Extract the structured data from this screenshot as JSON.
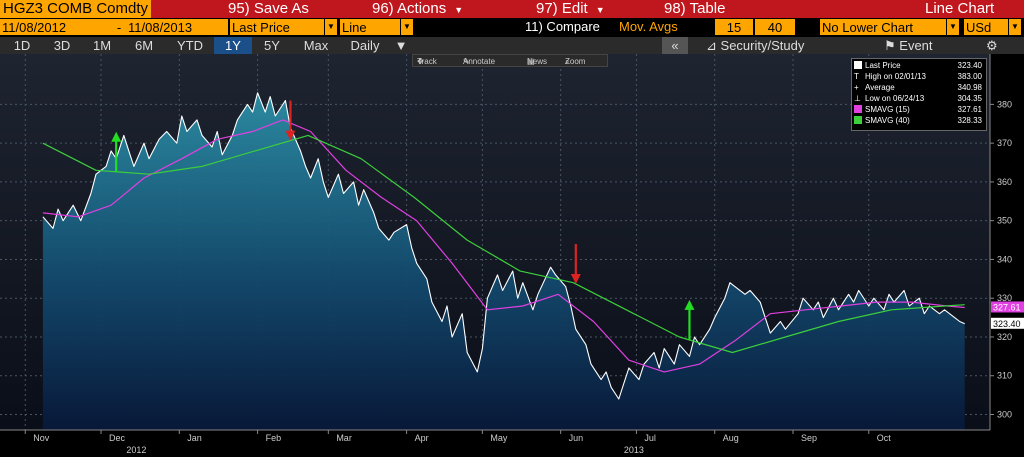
{
  "header": {
    "ticker": "HGZ3 COMB Comdty",
    "menu": [
      {
        "label": "95) Save As"
      },
      {
        "label": "96) Actions"
      },
      {
        "label": "97) Edit"
      },
      {
        "label": "98) Table"
      }
    ],
    "view": "Line Chart"
  },
  "settings": {
    "start_date": "11/08/2012",
    "date_sep": "-",
    "end_date": "11/08/2013",
    "field": "Last Price",
    "chart_style": "Line",
    "compare_label": "11) Compare",
    "study": "Mov. Avgs",
    "ma_short": "15",
    "ma_long": "40",
    "lower_chart": "No Lower Chart",
    "currency": "USd"
  },
  "ranges": {
    "items": [
      "1D",
      "3D",
      "1M",
      "6M",
      "YTD",
      "1Y",
      "5Y",
      "Max"
    ],
    "selected": "1Y",
    "period": "Daily",
    "collapse": "«",
    "security_study": "Security/Study",
    "event": "Event",
    "gear_icon": "gear-icon"
  },
  "toolbar": {
    "track": "Track",
    "annotate": "Annotate",
    "news": "News",
    "zoom": "Zoom"
  },
  "legend": {
    "last": {
      "label": "Last Price",
      "value": "323.40"
    },
    "high": {
      "label": "High on 02/01/13",
      "value": "383.00"
    },
    "average": {
      "label": "Average",
      "value": "340.98"
    },
    "low": {
      "label": "Low on 06/24/13",
      "value": "304.35"
    },
    "sma15": {
      "label": "SMAVG (15)",
      "value": "327.61"
    },
    "sma40": {
      "label": "SMAVG (40)",
      "value": "328.33"
    }
  },
  "value_tags": {
    "sma15": "327.61",
    "last": "323.40"
  },
  "colors": {
    "price": "#ffffff",
    "sma15": "#e040e0",
    "sma40": "#3ccf3c",
    "buy_signal": "#22dd22",
    "sell_signal": "#dd2222",
    "header_bg": "#c0161d",
    "field_bg": "#ffa500"
  },
  "chart_data": {
    "type": "line",
    "y_range": [
      296,
      393
    ],
    "y_ticks": [
      300,
      310,
      320,
      330,
      340,
      350,
      360,
      370,
      380
    ],
    "grid": true,
    "y_axis_side": "right",
    "legend_position": "top-right",
    "x_axis_labels": [
      {
        "date": "2012-11-01",
        "label": "Nov"
      },
      {
        "date": "2012-12-01",
        "label": "Dec"
      },
      {
        "date": "2013-01-01",
        "label": "Jan"
      },
      {
        "date": "2013-02-01",
        "label": "Feb"
      },
      {
        "date": "2013-03-01",
        "label": "Mar"
      },
      {
        "date": "2013-04-01",
        "label": "Apr"
      },
      {
        "date": "2013-05-01",
        "label": "May"
      },
      {
        "date": "2013-06-01",
        "label": "Jun"
      },
      {
        "date": "2013-07-01",
        "label": "Jul"
      },
      {
        "date": "2013-08-01",
        "label": "Aug"
      },
      {
        "date": "2013-09-01",
        "label": "Sep"
      },
      {
        "date": "2013-10-01",
        "label": "Oct"
      }
    ],
    "year_labels": [
      {
        "date": "2012-12-15",
        "label": "2012"
      },
      {
        "date": "2013-06-30",
        "label": "2013"
      }
    ],
    "series": [
      {
        "name": "Last Price",
        "style": "area",
        "points": [
          [
            "2012-11-08",
            351
          ],
          [
            "2012-11-12",
            348
          ],
          [
            "2012-11-14",
            353
          ],
          [
            "2012-11-16",
            350
          ],
          [
            "2012-11-20",
            354
          ],
          [
            "2012-11-23",
            350
          ],
          [
            "2012-11-27",
            357
          ],
          [
            "2012-11-29",
            362
          ],
          [
            "2012-12-03",
            364
          ],
          [
            "2012-12-05",
            368
          ],
          [
            "2012-12-07",
            366
          ],
          [
            "2012-12-10",
            372
          ],
          [
            "2012-12-12",
            368
          ],
          [
            "2012-12-14",
            364
          ],
          [
            "2012-12-18",
            370
          ],
          [
            "2012-12-20",
            366
          ],
          [
            "2012-12-24",
            371
          ],
          [
            "2012-12-27",
            373
          ],
          [
            "2012-12-31",
            370
          ],
          [
            "2013-01-02",
            377
          ],
          [
            "2013-01-04",
            373
          ],
          [
            "2013-01-08",
            376
          ],
          [
            "2013-01-10",
            372
          ],
          [
            "2013-01-14",
            369
          ],
          [
            "2013-01-16",
            373
          ],
          [
            "2013-01-18",
            367
          ],
          [
            "2013-01-22",
            372
          ],
          [
            "2013-01-24",
            376
          ],
          [
            "2013-01-28",
            380
          ],
          [
            "2013-01-30",
            378
          ],
          [
            "2013-02-01",
            383
          ],
          [
            "2013-02-04",
            378
          ],
          [
            "2013-02-06",
            382
          ],
          [
            "2013-02-08",
            377
          ],
          [
            "2013-02-12",
            381
          ],
          [
            "2013-02-14",
            374
          ],
          [
            "2013-02-18",
            368
          ],
          [
            "2013-02-20",
            364
          ],
          [
            "2013-02-22",
            361
          ],
          [
            "2013-02-25",
            366
          ],
          [
            "2013-02-27",
            360
          ],
          [
            "2013-03-01",
            356
          ],
          [
            "2013-03-05",
            362
          ],
          [
            "2013-03-07",
            357
          ],
          [
            "2013-03-11",
            360
          ],
          [
            "2013-03-13",
            354
          ],
          [
            "2013-03-15",
            358
          ],
          [
            "2013-03-19",
            352
          ],
          [
            "2013-03-21",
            348
          ],
          [
            "2013-03-25",
            345
          ],
          [
            "2013-03-27",
            347
          ],
          [
            "2013-04-01",
            349
          ],
          [
            "2013-04-03",
            343
          ],
          [
            "2013-04-05",
            339
          ],
          [
            "2013-04-09",
            335
          ],
          [
            "2013-04-11",
            329
          ],
          [
            "2013-04-15",
            324
          ],
          [
            "2013-04-17",
            328
          ],
          [
            "2013-04-19",
            320
          ],
          [
            "2013-04-23",
            326
          ],
          [
            "2013-04-25",
            316
          ],
          [
            "2013-04-29",
            311
          ],
          [
            "2013-05-01",
            317
          ],
          [
            "2013-05-03",
            330
          ],
          [
            "2013-05-07",
            336
          ],
          [
            "2013-05-09",
            332
          ],
          [
            "2013-05-13",
            337
          ],
          [
            "2013-05-15",
            330
          ],
          [
            "2013-05-17",
            334
          ],
          [
            "2013-05-21",
            327
          ],
          [
            "2013-05-23",
            331
          ],
          [
            "2013-05-28",
            338
          ],
          [
            "2013-05-30",
            336
          ],
          [
            "2013-06-03",
            333
          ],
          [
            "2013-06-05",
            328
          ],
          [
            "2013-06-07",
            322
          ],
          [
            "2013-06-11",
            318
          ],
          [
            "2013-06-13",
            313
          ],
          [
            "2013-06-17",
            309
          ],
          [
            "2013-06-19",
            311
          ],
          [
            "2013-06-21",
            307
          ],
          [
            "2013-06-24",
            304
          ],
          [
            "2013-06-26",
            308
          ],
          [
            "2013-06-28",
            312
          ],
          [
            "2013-07-02",
            309
          ],
          [
            "2013-07-04",
            313
          ],
          [
            "2013-07-08",
            316
          ],
          [
            "2013-07-10",
            312
          ],
          [
            "2013-07-12",
            317
          ],
          [
            "2013-07-16",
            313
          ],
          [
            "2013-07-18",
            318
          ],
          [
            "2013-07-22",
            315
          ],
          [
            "2013-07-24",
            320
          ],
          [
            "2013-07-26",
            318
          ],
          [
            "2013-07-30",
            322
          ],
          [
            "2013-08-01",
            325
          ],
          [
            "2013-08-05",
            330
          ],
          [
            "2013-08-07",
            334
          ],
          [
            "2013-08-09",
            333
          ],
          [
            "2013-08-13",
            331
          ],
          [
            "2013-08-15",
            332
          ],
          [
            "2013-08-19",
            329
          ],
          [
            "2013-08-21",
            325
          ],
          [
            "2013-08-23",
            321
          ],
          [
            "2013-08-27",
            324
          ],
          [
            "2013-08-29",
            322
          ],
          [
            "2013-09-03",
            326
          ],
          [
            "2013-09-05",
            330
          ],
          [
            "2013-09-09",
            327
          ],
          [
            "2013-09-11",
            329
          ],
          [
            "2013-09-13",
            325
          ],
          [
            "2013-09-17",
            330
          ],
          [
            "2013-09-19",
            327
          ],
          [
            "2013-09-23",
            331
          ],
          [
            "2013-09-25",
            329
          ],
          [
            "2013-09-27",
            332
          ],
          [
            "2013-10-01",
            328
          ],
          [
            "2013-10-03",
            330
          ],
          [
            "2013-10-07",
            327
          ],
          [
            "2013-10-09",
            331
          ],
          [
            "2013-10-11",
            329
          ],
          [
            "2013-10-15",
            332
          ],
          [
            "2013-10-17",
            328
          ],
          [
            "2013-10-21",
            330
          ],
          [
            "2013-10-23",
            326
          ],
          [
            "2013-10-25",
            328
          ],
          [
            "2013-10-29",
            326
          ],
          [
            "2013-10-31",
            327
          ],
          [
            "2013-11-04",
            325
          ],
          [
            "2013-11-06",
            324
          ],
          [
            "2013-11-08",
            323.4
          ]
        ]
      },
      {
        "name": "SMAVG (15)",
        "points": [
          [
            "2012-11-08",
            352
          ],
          [
            "2012-11-22",
            351
          ],
          [
            "2012-12-05",
            354
          ],
          [
            "2012-12-18",
            361
          ],
          [
            "2013-01-02",
            366
          ],
          [
            "2013-01-16",
            371
          ],
          [
            "2013-01-30",
            373
          ],
          [
            "2013-02-11",
            376
          ],
          [
            "2013-02-22",
            373
          ],
          [
            "2013-03-08",
            363
          ],
          [
            "2013-03-22",
            356
          ],
          [
            "2013-04-05",
            350
          ],
          [
            "2013-04-19",
            339
          ],
          [
            "2013-05-03",
            327
          ],
          [
            "2013-05-17",
            328
          ],
          [
            "2013-05-31",
            331
          ],
          [
            "2013-06-14",
            324
          ],
          [
            "2013-06-28",
            314
          ],
          [
            "2013-07-12",
            311
          ],
          [
            "2013-07-26",
            313
          ],
          [
            "2013-08-09",
            319
          ],
          [
            "2013-08-23",
            326
          ],
          [
            "2013-09-06",
            327
          ],
          [
            "2013-09-20",
            328
          ],
          [
            "2013-10-04",
            329
          ],
          [
            "2013-10-18",
            329
          ],
          [
            "2013-11-01",
            328
          ],
          [
            "2013-11-08",
            327.61
          ]
        ]
      },
      {
        "name": "SMAVG (40)",
        "points": [
          [
            "2012-11-08",
            370
          ],
          [
            "2012-11-29",
            363
          ],
          [
            "2012-12-20",
            362
          ],
          [
            "2013-01-10",
            364
          ],
          [
            "2013-01-31",
            368
          ],
          [
            "2013-02-21",
            372
          ],
          [
            "2013-03-14",
            366
          ],
          [
            "2013-04-04",
            356
          ],
          [
            "2013-04-25",
            345
          ],
          [
            "2013-05-16",
            337
          ],
          [
            "2013-06-06",
            334
          ],
          [
            "2013-06-27",
            327
          ],
          [
            "2013-07-18",
            320
          ],
          [
            "2013-08-08",
            316
          ],
          [
            "2013-08-29",
            320
          ],
          [
            "2013-09-19",
            324
          ],
          [
            "2013-10-10",
            327
          ],
          [
            "2013-10-31",
            328
          ],
          [
            "2013-11-08",
            328.33
          ]
        ]
      }
    ],
    "signals": [
      {
        "date": "2012-12-07",
        "type": "buy"
      },
      {
        "date": "2013-02-14",
        "type": "sell"
      },
      {
        "date": "2013-06-07",
        "type": "sell"
      },
      {
        "date": "2013-07-22",
        "type": "buy"
      }
    ]
  }
}
